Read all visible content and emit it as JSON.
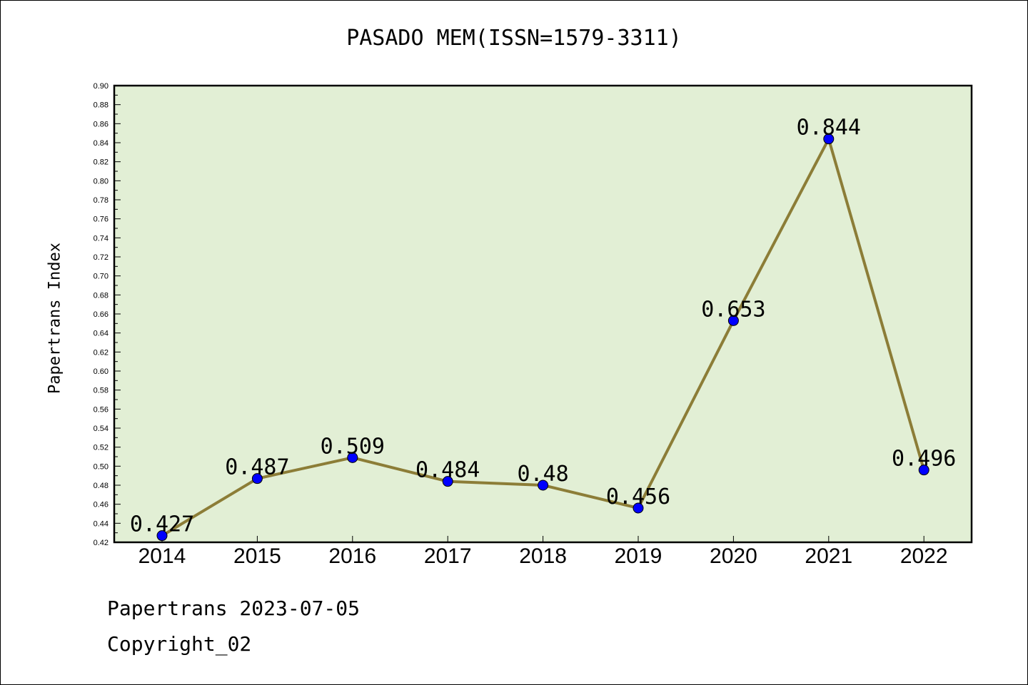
{
  "chart_data": {
    "type": "line",
    "title": "PASADO MEM(ISSN=1579-3311)",
    "ylabel": "Papertrans Index",
    "xlabel": "",
    "categories": [
      "2014",
      "2015",
      "2016",
      "2017",
      "2018",
      "2019",
      "2020",
      "2021",
      "2022"
    ],
    "series": [
      {
        "values": [
          0.427,
          0.487,
          0.509,
          0.484,
          0.48,
          0.456,
          0.653,
          0.844,
          0.496
        ]
      }
    ],
    "data_labels": [
      "0.427",
      "0.487",
      "0.509",
      "0.484",
      "0.48",
      "0.456",
      "0.653",
      "0.844",
      "0.496"
    ],
    "ylim": [
      0.42,
      0.9
    ],
    "yticks": [
      "0.42",
      "0.44",
      "0.46",
      "0.48",
      "0.50",
      "0.52",
      "0.54",
      "0.56",
      "0.58",
      "0.60",
      "0.62",
      "0.64",
      "0.66",
      "0.68",
      "0.70",
      "0.72",
      "0.74",
      "0.76",
      "0.78",
      "0.80",
      "0.82",
      "0.84",
      "0.86",
      "0.88",
      "0.90"
    ],
    "grid": false,
    "colors": {
      "plot_bg": "#e2efd5",
      "line": "#8c7d37",
      "marker": "#0000ff"
    }
  },
  "footer": {
    "line1": "Papertrans 2023-07-05",
    "line2": "Copyright_02"
  }
}
